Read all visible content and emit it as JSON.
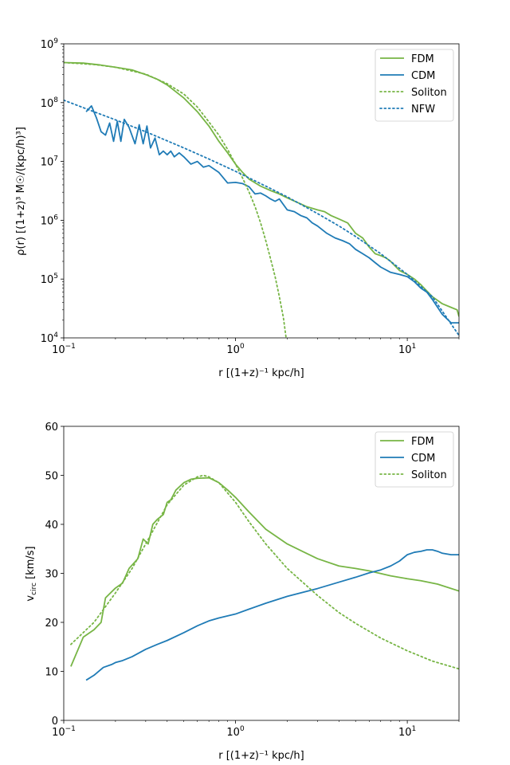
{
  "chart_data": [
    {
      "type": "line",
      "xscale": "log",
      "yscale": "log",
      "xlim": [
        0.1,
        20
      ],
      "ylim": [
        10000,
        1000000000
      ],
      "xlabel": "r [(1+z)⁻¹ kpc/h]",
      "ylabel": "ρ(r) [(1+z)³ M☉/(kpc/h)³]",
      "xticks": [
        {
          "value": 0.1,
          "base": "10",
          "exp": "−1"
        },
        {
          "value": 1,
          "base": "10",
          "exp": "0"
        },
        {
          "value": 10,
          "base": "10",
          "exp": "1"
        }
      ],
      "yticks": [
        {
          "value": 10000,
          "base": "10",
          "exp": "4"
        },
        {
          "value": 100000,
          "base": "10",
          "exp": "5"
        },
        {
          "value": 1000000,
          "base": "10",
          "exp": "6"
        },
        {
          "value": 10000000,
          "base": "10",
          "exp": "7"
        },
        {
          "value": 100000000,
          "base": "10",
          "exp": "8"
        },
        {
          "value": 1000000000,
          "base": "10",
          "exp": "9"
        }
      ],
      "legend": {
        "position": "top-right",
        "entries": [
          "FDM",
          "CDM",
          "Soliton",
          "NFW"
        ]
      },
      "series": [
        {
          "name": "FDM",
          "color": "#77b545",
          "style": "solid",
          "x": [
            0.1,
            0.13,
            0.16,
            0.2,
            0.25,
            0.3,
            0.35,
            0.4,
            0.5,
            0.6,
            0.7,
            0.8,
            0.9,
            1.0,
            1.1,
            1.2,
            1.4,
            1.6,
            1.8,
            2.0,
            2.3,
            2.6,
            3.0,
            3.3,
            3.6,
            4.0,
            4.5,
            5.0,
            5.5,
            6.0,
            6.5,
            7.0,
            7.5,
            8.0,
            9.0,
            10.0,
            11.0,
            12.0,
            14.0,
            16.0,
            18.0,
            19.5,
            20.0
          ],
          "y": [
            480000000,
            470000000,
            440000000,
            400000000,
            360000000,
            300000000,
            250000000,
            200000000,
            120000000,
            70000000,
            40000000,
            22000000,
            14000000,
            9000000,
            6500000,
            5000000,
            3800000,
            3200000,
            2800000,
            2400000,
            2000000,
            1700000,
            1500000,
            1400000,
            1200000,
            1050000,
            900000,
            600000,
            500000,
            350000,
            270000,
            250000,
            230000,
            200000,
            140000,
            120000,
            100000,
            80000,
            50000,
            38000,
            33000,
            30000,
            23000
          ]
        },
        {
          "name": "CDM",
          "color": "#1f7bb6",
          "style": "solid",
          "x": [
            0.135,
            0.145,
            0.155,
            0.165,
            0.175,
            0.185,
            0.195,
            0.205,
            0.215,
            0.225,
            0.24,
            0.26,
            0.275,
            0.29,
            0.305,
            0.32,
            0.34,
            0.36,
            0.38,
            0.4,
            0.42,
            0.44,
            0.47,
            0.5,
            0.55,
            0.6,
            0.65,
            0.7,
            0.8,
            0.9,
            1.0,
            1.1,
            1.2,
            1.3,
            1.4,
            1.5,
            1.6,
            1.7,
            1.8,
            2.0,
            2.2,
            2.4,
            2.6,
            2.8,
            3.0,
            3.4,
            3.8,
            4.2,
            4.6,
            5.0,
            5.5,
            6.0,
            6.5,
            7.0,
            8.0,
            9.0,
            10.0,
            11.0,
            12.0,
            13.0,
            14.0,
            16.0,
            18.0,
            20.0
          ],
          "y": [
            70000000,
            88000000,
            55000000,
            32000000,
            28000000,
            45000000,
            22000000,
            48000000,
            22000000,
            52000000,
            38000000,
            20000000,
            42000000,
            20000000,
            40000000,
            17000000,
            25000000,
            13000000,
            15000000,
            13000000,
            15000000,
            12000000,
            14000000,
            12000000,
            9000000,
            10000000,
            8000000,
            8500000,
            6500000,
            4300000,
            4400000,
            4200000,
            3700000,
            2800000,
            2900000,
            2600000,
            2300000,
            2100000,
            2300000,
            1500000,
            1400000,
            1200000,
            1100000,
            900000,
            800000,
            600000,
            500000,
            450000,
            400000,
            320000,
            270000,
            230000,
            190000,
            160000,
            130000,
            120000,
            110000,
            90000,
            70000,
            60000,
            45000,
            25000,
            18000,
            18000
          ]
        },
        {
          "name": "Soliton",
          "color": "#77b545",
          "style": "dotted",
          "x": [
            0.1,
            0.15,
            0.2,
            0.3,
            0.4,
            0.5,
            0.6,
            0.7,
            0.8,
            0.9,
            1.0,
            1.1,
            1.2,
            1.3,
            1.4,
            1.5,
            1.6,
            1.7,
            1.8,
            1.9,
            1.97
          ],
          "y": [
            480000000,
            445000000,
            400000000,
            305000000,
            210000000,
            140000000,
            84000000,
            47000000,
            28000000,
            16000000,
            9000000,
            5200000,
            3000000,
            1700000,
            900000,
            450000,
            220000,
            110000,
            50000,
            22000,
            10000
          ]
        },
        {
          "name": "NFW",
          "color": "#1f7bb6",
          "style": "dotted",
          "x": [
            0.1,
            0.15,
            0.2,
            0.3,
            0.5,
            0.7,
            1.0,
            1.5,
            2.0,
            3.0,
            4.0,
            5.0,
            7.0,
            10.0,
            14.0,
            20.0
          ],
          "y": [
            110000000,
            70000000,
            51000000,
            32000000,
            17000000,
            11000000,
            6800000,
            3800000,
            2500000,
            1300000,
            800000,
            530000,
            270000,
            120000,
            50000,
            11000
          ]
        }
      ]
    },
    {
      "type": "line",
      "xscale": "log",
      "yscale": "linear",
      "xlim": [
        0.1,
        20
      ],
      "ylim": [
        0,
        60
      ],
      "xlabel": "r [(1+z)⁻¹ kpc/h]",
      "ylabel": "v_circ [km/s]",
      "ylabel_main": "v",
      "ylabel_sub": "circ",
      "ylabel_rest": " [km/s]",
      "xticks": [
        {
          "value": 0.1,
          "base": "10",
          "exp": "−1"
        },
        {
          "value": 1,
          "base": "10",
          "exp": "0"
        },
        {
          "value": 10,
          "base": "10",
          "exp": "1"
        }
      ],
      "yticks": [
        {
          "value": 0,
          "label": "0"
        },
        {
          "value": 10,
          "label": "10"
        },
        {
          "value": 20,
          "label": "20"
        },
        {
          "value": 30,
          "label": "30"
        },
        {
          "value": 40,
          "label": "40"
        },
        {
          "value": 50,
          "label": "50"
        },
        {
          "value": 60,
          "label": "60"
        }
      ],
      "legend": {
        "position": "top-right",
        "entries": [
          "FDM",
          "CDM",
          "Soliton"
        ]
      },
      "series": [
        {
          "name": "FDM",
          "color": "#77b545",
          "style": "solid",
          "x": [
            0.11,
            0.13,
            0.15,
            0.165,
            0.175,
            0.2,
            0.22,
            0.24,
            0.27,
            0.29,
            0.31,
            0.33,
            0.35,
            0.38,
            0.4,
            0.42,
            0.45,
            0.5,
            0.55,
            0.6,
            0.7,
            0.75,
            0.8,
            0.9,
            1.0,
            1.2,
            1.5,
            2.0,
            3.0,
            4.0,
            5.0,
            6.0,
            8.0,
            10.0,
            12.0,
            15.0,
            20.0
          ],
          "y": [
            11,
            17,
            18.5,
            20,
            25,
            27,
            28,
            31,
            33,
            37,
            36,
            40,
            41,
            42,
            44.5,
            45,
            47,
            48.5,
            49.2,
            49.4,
            49.5,
            49,
            48.5,
            47,
            45.5,
            42.5,
            39,
            36,
            33,
            31.5,
            31,
            30.5,
            29.5,
            28.9,
            28.5,
            27.8,
            26.4
          ]
        },
        {
          "name": "CDM",
          "color": "#1f7bb6",
          "style": "solid",
          "x": [
            0.135,
            0.15,
            0.17,
            0.19,
            0.2,
            0.22,
            0.25,
            0.3,
            0.35,
            0.4,
            0.5,
            0.6,
            0.7,
            0.8,
            1.0,
            1.2,
            1.5,
            2.0,
            3.0,
            4.0,
            5.0,
            6.0,
            7.0,
            8.0,
            9.0,
            10.0,
            11.0,
            12.0,
            13.0,
            14.0,
            15.0,
            16.0,
            18.0,
            20.0
          ],
          "y": [
            8.2,
            9.2,
            10.8,
            11.4,
            11.8,
            12.2,
            13,
            14.5,
            15.5,
            16.3,
            17.9,
            19.3,
            20.3,
            20.9,
            21.7,
            22.7,
            23.9,
            25.3,
            26.9,
            28.2,
            29.2,
            30.1,
            30.7,
            31.5,
            32.5,
            33.8,
            34.3,
            34.5,
            34.8,
            34.8,
            34.5,
            34.1,
            33.8,
            33.8
          ]
        },
        {
          "name": "Soliton",
          "color": "#77b545",
          "style": "dotted",
          "x": [
            0.11,
            0.15,
            0.2,
            0.25,
            0.3,
            0.4,
            0.5,
            0.6,
            0.65,
            0.7,
            0.8,
            1.0,
            1.2,
            1.5,
            2.0,
            3.0,
            4.0,
            5.0,
            7.0,
            10.0,
            14.0,
            20.0
          ],
          "y": [
            15.5,
            20,
            26,
            31,
            36,
            44,
            48,
            49.7,
            50,
            49.7,
            48.5,
            44.5,
            40.5,
            36,
            31,
            25.5,
            22,
            19.8,
            16.8,
            14.2,
            12.1,
            10.5
          ]
        }
      ]
    }
  ]
}
